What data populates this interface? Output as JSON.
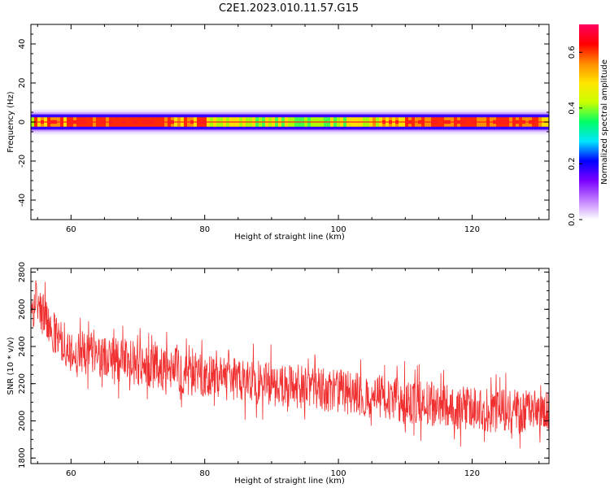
{
  "figure_title": "C2E1.2023.010.11.57.G15",
  "chart_data": [
    {
      "type": "heatmap",
      "xlabel": "Height of straight line (km)",
      "ylabel": "Frequency (Hz)",
      "xlim": [
        54,
        131.5
      ],
      "ylim": [
        -50,
        50
      ],
      "xticks": [
        60,
        80,
        100,
        120
      ],
      "yticks": [
        40,
        20,
        0,
        -20,
        -40
      ],
      "colorbar": {
        "label": "Normalized spectral amplitude",
        "range": [
          0,
          0.7
        ],
        "ticks": [
          "0.0",
          "0.2",
          "0.4",
          "0.6"
        ],
        "ticks_values": [
          0,
          0.2,
          0.4,
          0.6
        ],
        "colors": [
          "#ffffff",
          "#c07cff",
          "#7a00ff",
          "#0000ff",
          "#00e5ff",
          "#00ff66",
          "#c8ff00",
          "#ffe600",
          "#ff8c00",
          "#ff0000",
          "#ff0060"
        ]
      },
      "band": {
        "center_hz": 0,
        "core_halfwidth_hz": 1.5,
        "outer_halfwidth_hz": 6,
        "peak_amplitude": 0.65,
        "colormap": "rainbow"
      }
    },
    {
      "type": "line",
      "xlabel": "Height of straight line (km)",
      "ylabel": "SNR (10 * v/v)",
      "xlim": [
        54,
        131.5
      ],
      "ylim": [
        1770,
        2820
      ],
      "xticks": [
        60,
        80,
        100,
        120
      ],
      "yticks": [
        2800,
        2600,
        2400,
        2200,
        2000,
        1800
      ],
      "series": [
        {
          "color": "#f03030",
          "trend_x": [
            54,
            55,
            56,
            57,
            58,
            60,
            65,
            70,
            80,
            90,
            100,
            110,
            120,
            131.5
          ],
          "trend_y": [
            2600,
            2650,
            2560,
            2490,
            2440,
            2380,
            2340,
            2310,
            2240,
            2200,
            2160,
            2110,
            2060,
            2040
          ],
          "noise_amplitude": 120
        }
      ]
    }
  ]
}
